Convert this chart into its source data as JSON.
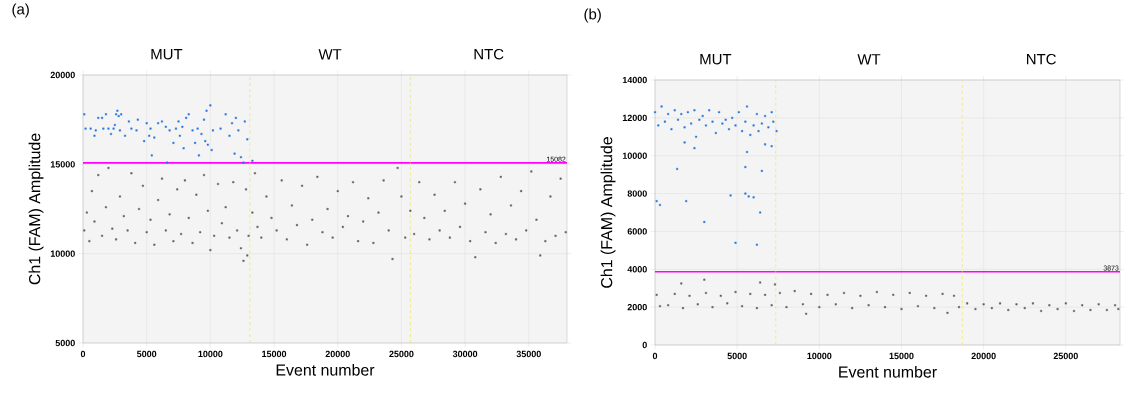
{
  "chart_data": [
    {
      "type": "scatter",
      "title": "(a)",
      "xlabel": "Event number",
      "ylabel": "Ch1 (FAM) Amplitude",
      "annotations": [
        "MUT",
        "WT",
        "NTC"
      ],
      "xlim": [
        0,
        38000
      ],
      "ylim": [
        5000,
        20000
      ],
      "xticks": [
        0,
        5000,
        10000,
        15000,
        20000,
        25000,
        30000,
        35000
      ],
      "yticks": [
        5000,
        10000,
        15000,
        20000
      ],
      "grid": true,
      "marker": "square",
      "ref_lines": [
        {
          "axis": "y",
          "value": 15082,
          "label": "15082",
          "color": "#ff00ff",
          "line_style": "solid"
        },
        {
          "axis": "x",
          "value": 13100,
          "color": "#f0e040",
          "line_style": "dashed"
        },
        {
          "axis": "x",
          "value": 25700,
          "color": "#f0e040",
          "line_style": "dashed"
        }
      ],
      "series": [
        {
          "color": "#5f5f5f",
          "x": [
            100,
            300,
            500,
            700,
            900,
            1200,
            1500,
            1800,
            2000,
            2300,
            2600,
            2900,
            3200,
            3500,
            3800,
            4100,
            4400,
            4700,
            5000,
            5300,
            5600,
            5900,
            6200,
            6500,
            6800,
            7100,
            7400,
            7700,
            8000,
            8300,
            8600,
            8900,
            9200,
            9500,
            9800,
            10000,
            10300,
            10600,
            10900,
            11200,
            11500,
            11800,
            12100,
            12400,
            12600,
            12800,
            12900,
            13000,
            13300,
            13500,
            13700,
            14000,
            14400,
            14800,
            15200,
            15600,
            16000,
            16400,
            16800,
            17200,
            17600,
            18000,
            18400,
            18800,
            19200,
            19600,
            20000,
            20400,
            20800,
            21200,
            21600,
            22000,
            22400,
            22800,
            23200,
            23600,
            24000,
            24300,
            24700,
            25000,
            25300,
            25700,
            26000,
            26400,
            26800,
            27200,
            27600,
            28000,
            28400,
            28800,
            29200,
            29600,
            30000,
            30400,
            30800,
            31200,
            31600,
            32000,
            32400,
            32800,
            33200,
            33600,
            34000,
            34400,
            34800,
            35200,
            35600,
            35900,
            36300,
            36700,
            37100,
            37500,
            37900
          ],
          "values": [
            11300,
            12300,
            10700,
            13500,
            11800,
            14400,
            11000,
            12600,
            14800,
            11400,
            10800,
            13200,
            12100,
            11300,
            14500,
            10600,
            12500,
            13800,
            11200,
            11900,
            10500,
            13000,
            14200,
            11300,
            12200,
            10700,
            13600,
            11100,
            14100,
            12000,
            10600,
            13300,
            11200,
            14400,
            12400,
            10200,
            11000,
            13900,
            11700,
            12600,
            10900,
            14000,
            11300,
            10300,
            9600,
            13600,
            9900,
            11000,
            12300,
            14500,
            11500,
            10900,
            13200,
            12000,
            11300,
            14100,
            10800,
            12700,
            11600,
            13800,
            10500,
            11900,
            14300,
            11200,
            12500,
            10900,
            13500,
            11500,
            12100,
            14000,
            10700,
            11800,
            13100,
            10600,
            12300,
            14100,
            11300,
            9700,
            14800,
            13200,
            10900,
            12400,
            11100,
            14000,
            12000,
            10800,
            13300,
            11300,
            12400,
            10900,
            14000,
            11500,
            12800,
            10700,
            9800,
            13600,
            11200,
            12200,
            10600,
            14300,
            11100,
            12700,
            10800,
            13500,
            11300,
            14600,
            11900,
            9900,
            10700,
            13200,
            11000,
            14200,
            11200
          ]
        },
        {
          "color": "#2277dd",
          "x": [
            100,
            200,
            600,
            900,
            1000,
            1200,
            1500,
            1600,
            1800,
            2000,
            2200,
            2400,
            2500,
            2600,
            2700,
            2800,
            2900,
            3000,
            3300,
            3600,
            3800,
            4200,
            4300,
            4800,
            5000,
            5200,
            5300,
            5400,
            5600,
            5900,
            6200,
            6500,
            6600,
            6800,
            7100,
            7300,
            7500,
            7600,
            7800,
            7900,
            8100,
            8300,
            8600,
            8800,
            9000,
            9100,
            9300,
            9500,
            9600,
            9700,
            9800,
            10000,
            10100,
            10200,
            10800,
            11200,
            11500,
            11700,
            11900,
            12000,
            12200,
            12400,
            12600,
            12700,
            12900,
            13300
          ],
          "values": [
            17800,
            17000,
            17000,
            16600,
            16900,
            17600,
            17600,
            17000,
            17800,
            17000,
            16700,
            17000,
            17200,
            17800,
            18000,
            17700,
            16900,
            17800,
            16600,
            17400,
            17000,
            16900,
            17500,
            16300,
            17300,
            16600,
            17000,
            15500,
            16500,
            17300,
            17400,
            17100,
            15100,
            16900,
            16200,
            17000,
            17400,
            16600,
            17100,
            15900,
            17600,
            17800,
            16900,
            16200,
            17000,
            15500,
            16700,
            17500,
            16300,
            18000,
            16100,
            18300,
            15800,
            16900,
            17000,
            17800,
            16600,
            17300,
            15600,
            17600,
            16900,
            15400,
            15100,
            17400,
            16400,
            15200
          ]
        }
      ]
    },
    {
      "type": "scatter",
      "title": "(b)",
      "xlabel": "Event number",
      "ylabel": "Ch1 (FAM) Amplitude",
      "annotations": [
        "MUT",
        "WT",
        "NTC"
      ],
      "xlim": [
        0,
        28300
      ],
      "ylim": [
        0,
        14000
      ],
      "xticks": [
        0,
        5000,
        10000,
        15000,
        20000,
        25000
      ],
      "yticks": [
        0,
        2000,
        4000,
        6000,
        8000,
        10000,
        12000,
        14000
      ],
      "grid": true,
      "marker": "square",
      "ref_lines": [
        {
          "axis": "y",
          "value": 3873,
          "label": "3873",
          "color": "#ff00ff",
          "line_style": "solid"
        },
        {
          "axis": "x",
          "value": 7350,
          "color": "#f0e040",
          "line_style": "dashed"
        },
        {
          "axis": "x",
          "value": 18700,
          "color": "#f0e040",
          "line_style": "dashed"
        }
      ],
      "series": [
        {
          "color": "#5f5f5f",
          "x": [
            100,
            300,
            800,
            1200,
            1600,
            1700,
            2100,
            2600,
            3000,
            3100,
            3500,
            4000,
            4400,
            4900,
            5300,
            5800,
            6200,
            6400,
            6700,
            7100,
            7300,
            7600,
            8000,
            8500,
            9000,
            9200,
            9500,
            10000,
            10500,
            11000,
            11500,
            12000,
            12500,
            13000,
            13500,
            14000,
            14500,
            15000,
            15500,
            16000,
            16500,
            17000,
            17500,
            17800,
            18200,
            18500,
            19000,
            19500,
            20000,
            20500,
            21000,
            21500,
            22000,
            22500,
            23000,
            23500,
            24000,
            24500,
            25000,
            25500,
            26000,
            26500,
            27000,
            27500,
            28000,
            28200
          ],
          "values": [
            2650,
            2050,
            2100,
            2700,
            3250,
            1950,
            2600,
            2150,
            3450,
            2750,
            2000,
            2600,
            2200,
            2800,
            2050,
            2700,
            1950,
            3300,
            2650,
            2100,
            3200,
            2750,
            2000,
            2850,
            2150,
            1650,
            2700,
            2000,
            2650,
            2150,
            2750,
            1950,
            2600,
            2100,
            2800,
            2000,
            2650,
            1900,
            2750,
            2050,
            2600,
            1950,
            2700,
            1700,
            2600,
            2000,
            2200,
            1900,
            2150,
            1950,
            2200,
            1850,
            2150,
            1950,
            2200,
            1800,
            2100,
            1900,
            2200,
            1800,
            2100,
            1850,
            2150,
            1850,
            2100,
            1900
          ]
        },
        {
          "color": "#2277dd",
          "x": [
            0,
            200,
            400,
            600,
            800,
            1000,
            1200,
            1400,
            1600,
            1800,
            2000,
            2200,
            2400,
            2500,
            2700,
            2900,
            3100,
            3300,
            3500,
            3700,
            3900,
            4100,
            4300,
            4500,
            4700,
            4900,
            5100,
            5300,
            5500,
            5600,
            5800,
            6000,
            6200,
            6300,
            6500,
            6700,
            6900,
            7100,
            7200,
            7400,
            100,
            300,
            1350,
            1900,
            1800,
            2400,
            3000,
            4600,
            4900,
            5500,
            5600,
            5500,
            5700,
            6000,
            6200,
            6400,
            6500,
            6700,
            7100
          ],
          "values": [
            12300,
            11600,
            12600,
            11800,
            12200,
            11400,
            12400,
            11900,
            12200,
            11500,
            12300,
            11700,
            12400,
            11000,
            11900,
            12100,
            11600,
            12400,
            11800,
            11200,
            12300,
            11700,
            11900,
            11400,
            12000,
            11600,
            12300,
            11300,
            11800,
            12600,
            11100,
            11600,
            12200,
            11300,
            11700,
            12100,
            11500,
            12300,
            11800,
            11300,
            7600,
            7400,
            9300,
            7600,
            10700,
            10400,
            6500,
            7900,
            5400,
            9400,
            10200,
            8000,
            7850,
            7800,
            5300,
            7000,
            9200,
            10600,
            10500
          ]
        }
      ]
    }
  ]
}
